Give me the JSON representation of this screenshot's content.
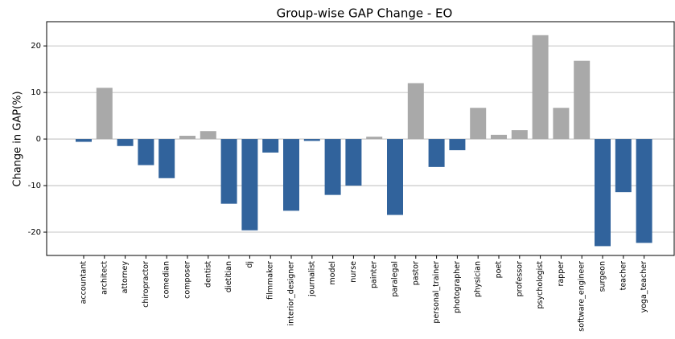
{
  "chart_data": {
    "type": "bar",
    "title": "Group-wise GAP Change - EO",
    "y_label": "Change in GAP(%)",
    "categories": [
      "accountant",
      "architect",
      "attorney",
      "chiropractor",
      "comedian",
      "composer",
      "dentist",
      "dietitian",
      "dj",
      "filmmaker",
      "interior_designer",
      "journalist",
      "model",
      "nurse",
      "painter",
      "paralegal",
      "pastor",
      "personal_trainer",
      "photographer",
      "physician",
      "poet",
      "professor",
      "psychologist",
      "rapper",
      "software_engineer",
      "surgeon",
      "teacher",
      "yoga_teacher"
    ],
    "values": [
      -0.6,
      11,
      -1.5,
      -5.6,
      -8.4,
      0.7,
      1.7,
      -13.9,
      -19.6,
      -2.9,
      -15.4,
      -0.4,
      -12,
      -10,
      0.5,
      -16.3,
      12,
      -6,
      -2.4,
      6.7,
      0.9,
      1.9,
      22.3,
      6.7,
      16.8,
      -23,
      -11.4,
      -22.3
    ],
    "colors": [
      "#31639c",
      "#a9a9a9",
      "#31639c",
      "#31639c",
      "#31639c",
      "#a9a9a9",
      "#a9a9a9",
      "#31639c",
      "#31639c",
      "#31639c",
      "#31639c",
      "#31639c",
      "#31639c",
      "#31639c",
      "#a9a9a9",
      "#31639c",
      "#a9a9a9",
      "#31639c",
      "#31639c",
      "#a9a9a9",
      "#a9a9a9",
      "#a9a9a9",
      "#a9a9a9",
      "#a9a9a9",
      "#a9a9a9",
      "#31639c",
      "#31639c",
      "#31639c"
    ],
    "ylim": [
      -25,
      25.2
    ],
    "yticks": [
      -20,
      -10,
      0,
      10,
      20
    ],
    "grid": true
  }
}
